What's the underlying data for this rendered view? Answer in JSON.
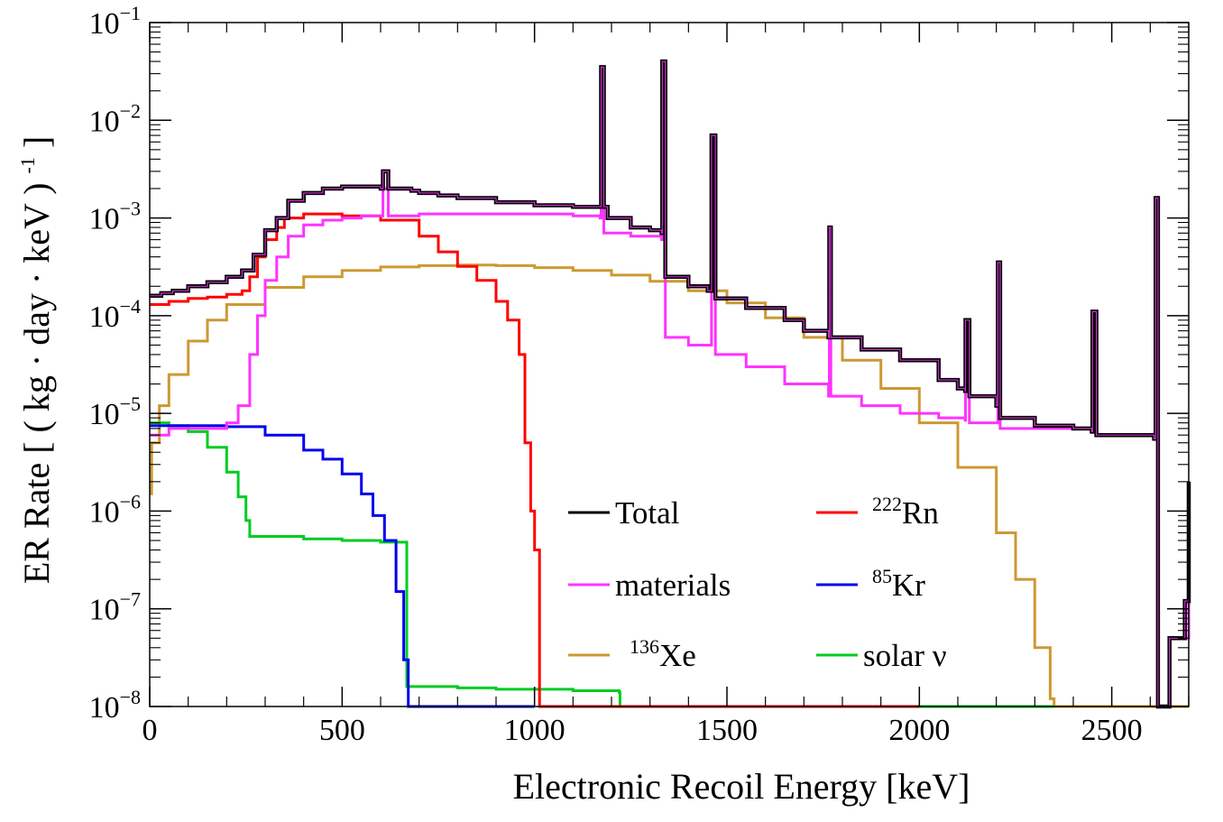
{
  "chart_data": {
    "type": "line",
    "xlabel": "Electronic Recoil Energy [keV]",
    "ylabel": "ER Rate [ ( kg · day · keV ) ",
    "ylabel_sup": "-1",
    "ylabel_end": " ]",
    "xlim": [
      0,
      2700
    ],
    "ylim": [
      1e-08,
      0.1
    ],
    "yscale": "log",
    "x_ticks": [
      0,
      500,
      1000,
      1500,
      2000,
      2500
    ],
    "x_tick_labels": [
      "0",
      "500",
      "1000",
      "1500",
      "2000",
      "2500"
    ],
    "y_ticks": [
      1e-08,
      1e-07,
      1e-06,
      1e-05,
      0.0001,
      0.001,
      0.01,
      0.1
    ],
    "y_tick_base": "10",
    "y_tick_exps": [
      "−8",
      "−7",
      "−6",
      "−5",
      "−4",
      "−3",
      "−2",
      "−1"
    ],
    "grid": false,
    "legend_placement": "bottom-center",
    "series": [
      {
        "name": "Total",
        "color": "#000000",
        "points": [
          [
            0,
            0.00016
          ],
          [
            30,
            0.00017
          ],
          [
            60,
            0.00018
          ],
          [
            100,
            0.0002
          ],
          [
            150,
            0.00022
          ],
          [
            200,
            0.00025
          ],
          [
            240,
            0.00029
          ],
          [
            270,
            0.00042
          ],
          [
            300,
            0.00075
          ],
          [
            330,
            0.001
          ],
          [
            360,
            0.0015
          ],
          [
            400,
            0.0018
          ],
          [
            450,
            0.002
          ],
          [
            500,
            0.0021
          ],
          [
            550,
            0.0021
          ],
          [
            600,
            0.002
          ],
          [
            606,
            0.003
          ],
          [
            620,
            0.002
          ],
          [
            680,
            0.0019
          ],
          [
            700,
            0.0018
          ],
          [
            750,
            0.0017
          ],
          [
            800,
            0.0016
          ],
          [
            900,
            0.00145
          ],
          [
            1000,
            0.00135
          ],
          [
            1100,
            0.0013
          ],
          [
            1170,
            0.0013
          ],
          [
            1173,
            0.035
          ],
          [
            1180,
            0.0013
          ],
          [
            1190,
            0.001
          ],
          [
            1250,
            0.0008
          ],
          [
            1300,
            0.00075
          ],
          [
            1330,
            0.0007
          ],
          [
            1332,
            0.04
          ],
          [
            1340,
            0.00025
          ],
          [
            1400,
            0.0002
          ],
          [
            1450,
            0.00018
          ],
          [
            1460,
            0.007
          ],
          [
            1470,
            0.00015
          ],
          [
            1550,
            0.00012
          ],
          [
            1650,
            9e-05
          ],
          [
            1700,
            7e-05
          ],
          [
            1764,
            6e-05
          ],
          [
            1766,
            0.0008
          ],
          [
            1770,
            6e-05
          ],
          [
            1850,
            4.5e-05
          ],
          [
            1950,
            3.5e-05
          ],
          [
            2050,
            2.2e-05
          ],
          [
            2100,
            1.8e-05
          ],
          [
            2119,
            1.7e-05
          ],
          [
            2120,
            9e-05
          ],
          [
            2130,
            1.5e-05
          ],
          [
            2200,
            1.2e-05
          ],
          [
            2204,
            0.00035
          ],
          [
            2210,
            9e-06
          ],
          [
            2300,
            7.5e-06
          ],
          [
            2400,
            7e-06
          ],
          [
            2448,
            6.5e-06
          ],
          [
            2450,
            0.00011
          ],
          [
            2460,
            6e-06
          ],
          [
            2550,
            6e-06
          ],
          [
            2610,
            5.5e-06
          ],
          [
            2614,
            0.0016
          ],
          [
            2620,
            1e-08
          ],
          [
            2650,
            5e-08
          ],
          [
            2690,
            1.2e-07
          ],
          [
            2700,
            2e-06
          ]
        ]
      },
      {
        "name": "materials",
        "color": "#ff33ff",
        "points": [
          [
            0,
            6e-06
          ],
          [
            50,
            7e-06
          ],
          [
            100,
            7e-06
          ],
          [
            150,
            7e-06
          ],
          [
            200,
            8e-06
          ],
          [
            230,
            1.2e-05
          ],
          [
            260,
            4e-05
          ],
          [
            280,
            0.0001
          ],
          [
            300,
            0.00023
          ],
          [
            330,
            0.0004
          ],
          [
            360,
            0.00065
          ],
          [
            400,
            0.00085
          ],
          [
            450,
            0.00095
          ],
          [
            500,
            0.001
          ],
          [
            550,
            0.00105
          ],
          [
            606,
            0.002
          ],
          [
            620,
            0.00105
          ],
          [
            700,
            0.0011
          ],
          [
            800,
            0.0011
          ],
          [
            900,
            0.0011
          ],
          [
            1000,
            0.0011
          ],
          [
            1100,
            0.00105
          ],
          [
            1170,
            0.001
          ],
          [
            1173,
            0.035
          ],
          [
            1180,
            0.0007
          ],
          [
            1250,
            0.00065
          ],
          [
            1330,
            0.0006
          ],
          [
            1332,
            0.04
          ],
          [
            1340,
            6e-05
          ],
          [
            1400,
            5e-05
          ],
          [
            1460,
            0.007
          ],
          [
            1470,
            4e-05
          ],
          [
            1550,
            3e-05
          ],
          [
            1650,
            2e-05
          ],
          [
            1764,
            1.5e-05
          ],
          [
            1766,
            0.0008
          ],
          [
            1770,
            1.5e-05
          ],
          [
            1850,
            1.2e-05
          ],
          [
            1950,
            1e-05
          ],
          [
            2050,
            9e-06
          ],
          [
            2119,
            8.5e-06
          ],
          [
            2120,
            9e-05
          ],
          [
            2130,
            8e-06
          ],
          [
            2204,
            0.00035
          ],
          [
            2210,
            7e-06
          ],
          [
            2300,
            7e-06
          ],
          [
            2448,
            6.5e-06
          ],
          [
            2450,
            0.00011
          ],
          [
            2460,
            6e-06
          ],
          [
            2550,
            6e-06
          ],
          [
            2614,
            0.0016
          ],
          [
            2620,
            1e-08
          ],
          [
            2650,
            5e-08
          ],
          [
            2700,
            2e-06
          ]
        ]
      },
      {
        "name": "136Xe",
        "label_sup": "136",
        "label_main": "Xe",
        "color": "#cc9933",
        "points": [
          [
            0,
            1.5e-06
          ],
          [
            5,
            5e-06
          ],
          [
            25,
            1.2e-05
          ],
          [
            50,
            2.5e-05
          ],
          [
            100,
            5.5e-05
          ],
          [
            150,
            9e-05
          ],
          [
            200,
            0.00013
          ],
          [
            300,
            0.000195
          ],
          [
            400,
            0.00025
          ],
          [
            500,
            0.00029
          ],
          [
            600,
            0.000315
          ],
          [
            700,
            0.000325
          ],
          [
            800,
            0.00033
          ],
          [
            900,
            0.000325
          ],
          [
            1000,
            0.00031
          ],
          [
            1100,
            0.00029
          ],
          [
            1200,
            0.00026
          ],
          [
            1300,
            0.000225
          ],
          [
            1400,
            0.00018
          ],
          [
            1500,
            0.000135
          ],
          [
            1600,
            9.5e-05
          ],
          [
            1700,
            6e-05
          ],
          [
            1800,
            3.5e-05
          ],
          [
            1900,
            1.8e-05
          ],
          [
            2000,
            8e-06
          ],
          [
            2100,
            2.8e-06
          ],
          [
            2200,
            6e-07
          ],
          [
            2250,
            2e-07
          ],
          [
            2300,
            4e-08
          ],
          [
            2340,
            1.2e-08
          ],
          [
            2350,
            1e-08
          ],
          [
            2700,
            1e-08
          ]
        ]
      },
      {
        "name": "222Rn",
        "label_sup": "222",
        "label_main": "Rn",
        "color": "#ff0000",
        "points": [
          [
            0,
            0.00013
          ],
          [
            50,
            0.00014
          ],
          [
            100,
            0.00015
          ],
          [
            150,
            0.000155
          ],
          [
            200,
            0.000165
          ],
          [
            240,
            0.00018
          ],
          [
            260,
            0.00025
          ],
          [
            280,
            0.0004
          ],
          [
            300,
            0.0006
          ],
          [
            330,
            0.0008
          ],
          [
            350,
            0.001
          ],
          [
            400,
            0.0011
          ],
          [
            500,
            0.00105
          ],
          [
            600,
            0.00095
          ],
          [
            700,
            0.00065
          ],
          [
            750,
            0.00045
          ],
          [
            800,
            0.00032
          ],
          [
            850,
            0.00023
          ],
          [
            900,
            0.00014
          ],
          [
            930,
            9e-05
          ],
          [
            960,
            4e-05
          ],
          [
            975,
            5e-06
          ],
          [
            990,
            1e-06
          ],
          [
            1000,
            4e-07
          ],
          [
            1012,
            4e-07
          ],
          [
            1013,
            1e-08
          ],
          [
            2000,
            1e-08
          ]
        ]
      },
      {
        "name": "85Kr",
        "label_sup": "85",
        "label_main": "Kr",
        "color": "#0000ee",
        "points": [
          [
            0,
            7.5e-06
          ],
          [
            100,
            7.5e-06
          ],
          [
            200,
            7.3e-06
          ],
          [
            300,
            6e-06
          ],
          [
            400,
            4.2e-06
          ],
          [
            450,
            3.4e-06
          ],
          [
            500,
            2.4e-06
          ],
          [
            550,
            1.5e-06
          ],
          [
            580,
            9e-07
          ],
          [
            610,
            5e-07
          ],
          [
            640,
            1.5e-07
          ],
          [
            660,
            3e-08
          ],
          [
            672,
            1e-08
          ],
          [
            1000,
            1e-08
          ]
        ]
      },
      {
        "name": "solar ν",
        "label_main": "solar ν",
        "color": "#00cc22",
        "points": [
          [
            0,
            8e-06
          ],
          [
            50,
            7.5e-06
          ],
          [
            100,
            6.5e-06
          ],
          [
            150,
            4.5e-06
          ],
          [
            200,
            2.5e-06
          ],
          [
            230,
            1.4e-06
          ],
          [
            250,
            8e-07
          ],
          [
            260,
            5.5e-07
          ],
          [
            400,
            5.2e-07
          ],
          [
            500,
            5e-07
          ],
          [
            600,
            4.8e-07
          ],
          [
            665,
            4.8e-07
          ],
          [
            668,
            1.6e-08
          ],
          [
            700,
            1.6e-08
          ],
          [
            800,
            1.55e-08
          ],
          [
            900,
            1.5e-08
          ],
          [
            1000,
            1.5e-08
          ],
          [
            1100,
            1.45e-08
          ],
          [
            1220,
            1.4e-08
          ],
          [
            1222,
            1e-08
          ],
          [
            2350,
            1e-08
          ]
        ]
      }
    ]
  }
}
